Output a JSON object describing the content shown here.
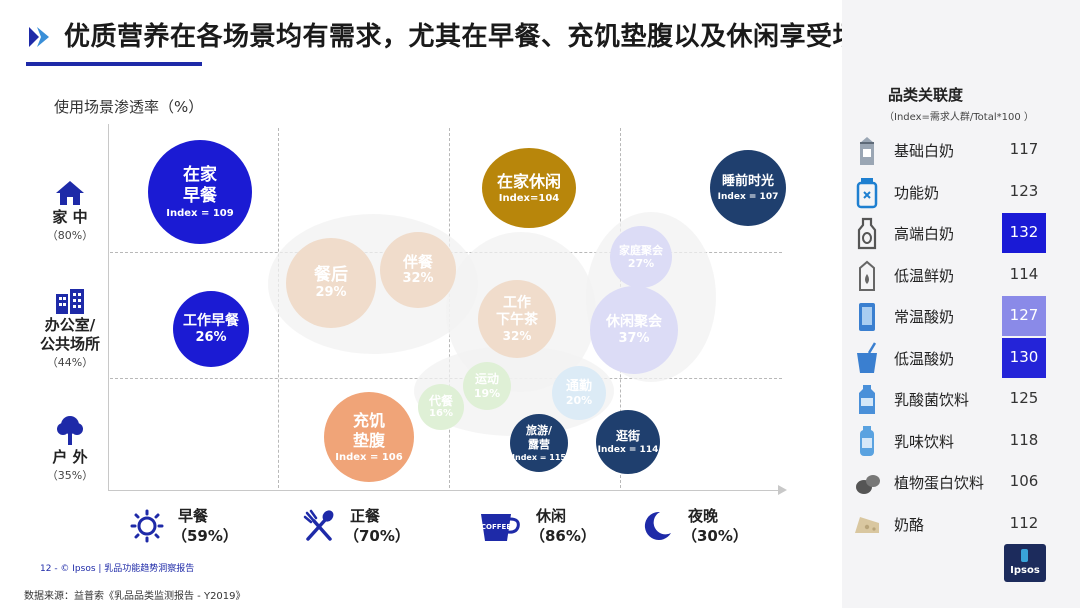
{
  "header": {
    "title": "优质营养在各场景均有需求，尤其在早餐、充饥垫腹以及休闲享受场景中突出",
    "y_axis_label": "使用场景渗透率（%）"
  },
  "rows": [
    {
      "name": "家 中",
      "pct": "（80%）",
      "icon": "house-icon"
    },
    {
      "name": "办公室/",
      "name2": "公共场所",
      "pct": "（44%）",
      "icon": "office-building-icon"
    },
    {
      "name": "户 外",
      "pct": "（35%）",
      "icon": "tree-icon"
    }
  ],
  "time_categories": [
    {
      "name": "早餐",
      "pct": "（59%）",
      "icon": "sun-icon"
    },
    {
      "name": "正餐",
      "pct": "（70%）",
      "icon": "fork-spoon-icon"
    },
    {
      "name": "休闲",
      "pct": "（86%）",
      "icon": "coffee-cup-icon",
      "icon_text": "COFFEE"
    },
    {
      "name": "夜晚",
      "pct": "（30%）",
      "icon": "moon-icon"
    }
  ],
  "bubbles": {
    "home_breakfast": {
      "name1": "在家",
      "name2": "早餐",
      "value": "Index = 109"
    },
    "home_leisure": {
      "name1": "在家休闲",
      "value": "Index=104"
    },
    "bedtime": {
      "name1": "睡前时光",
      "value": "Index = 107"
    },
    "work_breakfast": {
      "name1": "工作早餐",
      "value": "26%"
    },
    "snack": {
      "name1": "充饥",
      "name2": "垫腹",
      "value": "Index = 106"
    },
    "travel": {
      "name1": "旅游/",
      "name2": "露营",
      "value": "Index = 115"
    },
    "shopping": {
      "name1": "逛街",
      "value": "Index = 114"
    },
    "after_meal": {
      "name1": "餐后",
      "value": "29%"
    },
    "with_meal": {
      "name1": "伴餐",
      "value": "32%"
    },
    "afternoon_tea": {
      "name1": "工作",
      "name2": "下午茶",
      "value": "32%"
    },
    "home_party": {
      "name1": "家庭聚会",
      "value": "27%"
    },
    "leisure_party": {
      "name1": "休闲聚会",
      "value": "37%"
    },
    "meal_replacement": {
      "name1": "代餐",
      "value": "16%"
    },
    "sports": {
      "name1": "运动",
      "value": "19%"
    },
    "commute": {
      "name1": "通勤",
      "value": "20%"
    }
  },
  "panel": {
    "title": "品类关联度",
    "subtitle": "（Index=需求人群/Total*100 ）",
    "categories": [
      {
        "name": "基础白奶",
        "index": "117",
        "icon": "milk-carton-icon",
        "highlight": ""
      },
      {
        "name": "功能奶",
        "index": "123",
        "icon": "function-milk-icon",
        "highlight": ""
      },
      {
        "name": "高端白奶",
        "index": "132",
        "icon": "premium-milk-bottle-icon",
        "highlight": "#1a1ad6"
      },
      {
        "name": "低温鲜奶",
        "index": "114",
        "icon": "fresh-milk-carton-icon",
        "highlight": ""
      },
      {
        "name": "常温酸奶",
        "index": "127",
        "icon": "yogurt-box-icon",
        "highlight": "#8a8ae8"
      },
      {
        "name": "低温酸奶",
        "index": "130",
        "icon": "yogurt-cup-icon",
        "highlight": "#2424d8"
      },
      {
        "name": "乳酸菌饮料",
        "index": "125",
        "icon": "lactic-drink-icon",
        "highlight": ""
      },
      {
        "name": "乳味饮料",
        "index": "118",
        "icon": "milk-drink-bottle-icon",
        "highlight": ""
      },
      {
        "name": "植物蛋白饮料",
        "index": "106",
        "icon": "bean-icon",
        "highlight": ""
      },
      {
        "name": "奶酪",
        "index": "112",
        "icon": "cheese-icon",
        "highlight": ""
      }
    ],
    "brand": "Ipsos"
  },
  "footer": {
    "page_note": "12  - © Ipsos | 乳品功能趋势洞察报告",
    "source": "数据来源：益普索《乳品品类监测报告  - Y2019》"
  },
  "colors": {
    "deep_blue": "#1b1bd3",
    "gold": "#b8860b",
    "navy": "#1f3f6e",
    "orange": "#f0a478",
    "accent": "#1e2aa8"
  }
}
